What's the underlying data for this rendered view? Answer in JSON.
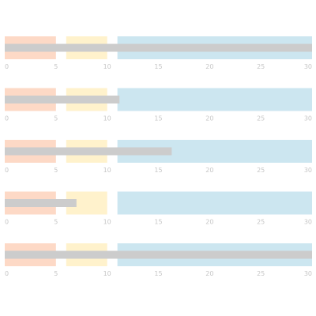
{
  "chart_data": {
    "type": "bullet",
    "title": "",
    "xlabel": "",
    "ylabel": "",
    "xlim": [
      0,
      30
    ],
    "ticks": [
      0,
      5,
      10,
      15,
      20,
      25,
      30
    ],
    "grid": false,
    "legend": "none",
    "ranges": [
      {
        "from": 0,
        "to": 5,
        "color": "#fdd9c6"
      },
      {
        "from": 6,
        "to": 10,
        "color": "#fff2cc"
      },
      {
        "from": 11,
        "to": 30,
        "color": "#cce6f0"
      }
    ],
    "measure_color": "#cccccc",
    "rows": [
      {
        "value": 30
      },
      {
        "value": 11.2
      },
      {
        "value": 16.3
      },
      {
        "value": 7
      },
      {
        "value": 30
      }
    ]
  }
}
